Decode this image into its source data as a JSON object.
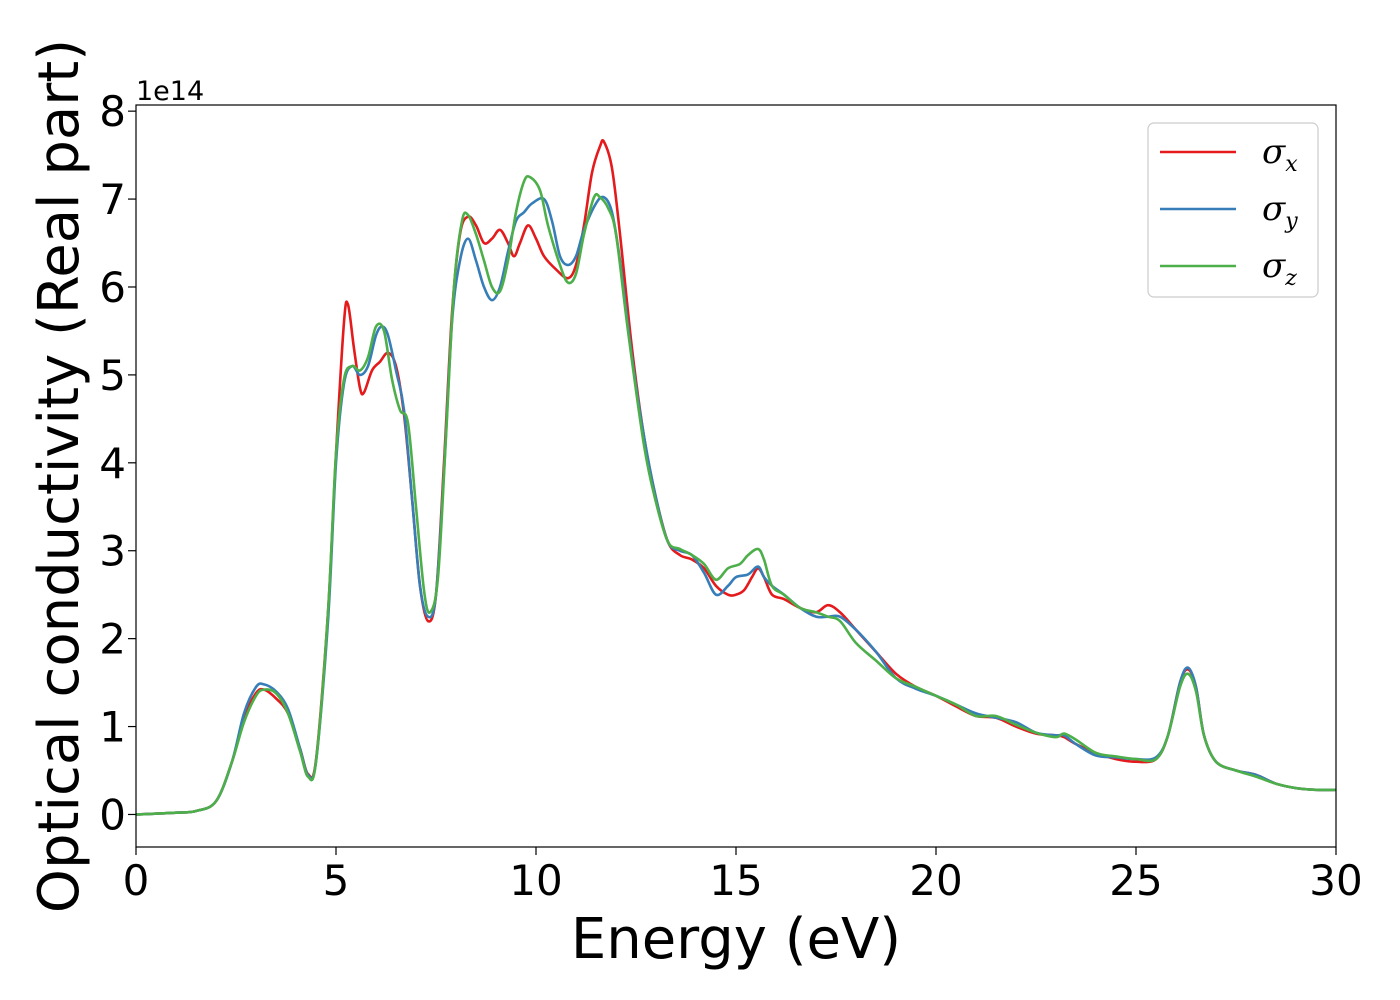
{
  "chart_data": {
    "type": "line",
    "title": "",
    "xlabel": "Energy (eV)",
    "ylabel": "Optical conductivity (Real part)",
    "y_offset_label": "1e14",
    "xlim": [
      0,
      30
    ],
    "ylim": [
      -0.37,
      8.07
    ],
    "x_ticks": [
      "0",
      "5",
      "10",
      "15",
      "20",
      "25",
      "30"
    ],
    "y_ticks": [
      "0",
      "1",
      "2",
      "3",
      "4",
      "5",
      "6",
      "7",
      "8"
    ],
    "grid": false,
    "legend_position": "top-right",
    "series": [
      {
        "name": "σx",
        "symbol": "σ",
        "subscript": "x",
        "color": "#e41a1c",
        "points": [
          [
            0,
            0
          ],
          [
            1,
            0.02
          ],
          [
            1.5,
            0.04
          ],
          [
            2,
            0.15
          ],
          [
            2.4,
            0.6
          ],
          [
            2.7,
            1.1
          ],
          [
            3,
            1.38
          ],
          [
            3.2,
            1.42
          ],
          [
            3.5,
            1.32
          ],
          [
            3.8,
            1.15
          ],
          [
            4.1,
            0.75
          ],
          [
            4.3,
            0.46
          ],
          [
            4.5,
            0.62
          ],
          [
            4.8,
            2.3
          ],
          [
            5,
            4.1
          ],
          [
            5.2,
            5.6
          ],
          [
            5.3,
            5.8
          ],
          [
            5.45,
            5.3
          ],
          [
            5.6,
            4.85
          ],
          [
            5.7,
            4.8
          ],
          [
            5.9,
            5.05
          ],
          [
            6.1,
            5.15
          ],
          [
            6.3,
            5.25
          ],
          [
            6.5,
            5.1
          ],
          [
            6.7,
            4.55
          ],
          [
            6.9,
            3.6
          ],
          [
            7.1,
            2.6
          ],
          [
            7.3,
            2.2
          ],
          [
            7.5,
            2.5
          ],
          [
            7.7,
            4
          ],
          [
            7.9,
            5.7
          ],
          [
            8.1,
            6.6
          ],
          [
            8.3,
            6.8
          ],
          [
            8.5,
            6.7
          ],
          [
            8.7,
            6.5
          ],
          [
            8.9,
            6.55
          ],
          [
            9.1,
            6.65
          ],
          [
            9.3,
            6.5
          ],
          [
            9.45,
            6.35
          ],
          [
            9.6,
            6.5
          ],
          [
            9.8,
            6.7
          ],
          [
            10,
            6.55
          ],
          [
            10.2,
            6.35
          ],
          [
            10.5,
            6.2
          ],
          [
            10.8,
            6.1
          ],
          [
            11,
            6.25
          ],
          [
            11.2,
            6.7
          ],
          [
            11.4,
            7.3
          ],
          [
            11.6,
            7.6
          ],
          [
            11.7,
            7.65
          ],
          [
            11.9,
            7.35
          ],
          [
            12.1,
            6.6
          ],
          [
            12.4,
            5.3
          ],
          [
            12.7,
            4.3
          ],
          [
            13,
            3.6
          ],
          [
            13.3,
            3.1
          ],
          [
            13.6,
            2.95
          ],
          [
            13.9,
            2.9
          ],
          [
            14.2,
            2.8
          ],
          [
            14.5,
            2.6
          ],
          [
            14.8,
            2.5
          ],
          [
            15,
            2.5
          ],
          [
            15.2,
            2.55
          ],
          [
            15.4,
            2.7
          ],
          [
            15.55,
            2.8
          ],
          [
            15.7,
            2.7
          ],
          [
            15.9,
            2.5
          ],
          [
            16.2,
            2.45
          ],
          [
            16.6,
            2.35
          ],
          [
            17,
            2.3
          ],
          [
            17.3,
            2.38
          ],
          [
            17.6,
            2.3
          ],
          [
            18,
            2.1
          ],
          [
            18.5,
            1.85
          ],
          [
            19,
            1.6
          ],
          [
            19.5,
            1.45
          ],
          [
            20,
            1.35
          ],
          [
            20.5,
            1.23
          ],
          [
            21,
            1.12
          ],
          [
            21.5,
            1.1
          ],
          [
            22,
            1
          ],
          [
            22.5,
            0.92
          ],
          [
            23,
            0.9
          ],
          [
            23.2,
            0.88
          ],
          [
            23.5,
            0.8
          ],
          [
            24,
            0.7
          ],
          [
            24.5,
            0.63
          ],
          [
            25,
            0.6
          ],
          [
            25.5,
            0.63
          ],
          [
            25.8,
            0.9
          ],
          [
            26.1,
            1.5
          ],
          [
            26.3,
            1.65
          ],
          [
            26.5,
            1.45
          ],
          [
            26.7,
            0.9
          ],
          [
            27,
            0.6
          ],
          [
            27.5,
            0.5
          ],
          [
            28,
            0.45
          ],
          [
            28.5,
            0.35
          ],
          [
            29,
            0.3
          ],
          [
            29.5,
            0.28
          ],
          [
            30,
            0.28
          ]
        ]
      },
      {
        "name": "σy",
        "symbol": "σ",
        "subscript": "y",
        "color": "#377eb8",
        "points": [
          [
            0,
            0
          ],
          [
            1,
            0.02
          ],
          [
            1.5,
            0.04
          ],
          [
            2,
            0.15
          ],
          [
            2.4,
            0.6
          ],
          [
            2.7,
            1.15
          ],
          [
            3,
            1.45
          ],
          [
            3.2,
            1.48
          ],
          [
            3.5,
            1.4
          ],
          [
            3.8,
            1.2
          ],
          [
            4.1,
            0.75
          ],
          [
            4.3,
            0.45
          ],
          [
            4.5,
            0.6
          ],
          [
            4.8,
            2.2
          ],
          [
            5,
            4
          ],
          [
            5.2,
            4.9
          ],
          [
            5.4,
            5.1
          ],
          [
            5.6,
            5
          ],
          [
            5.8,
            5.1
          ],
          [
            6,
            5.45
          ],
          [
            6.15,
            5.55
          ],
          [
            6.3,
            5.45
          ],
          [
            6.5,
            5.05
          ],
          [
            6.7,
            4.6
          ],
          [
            6.9,
            3.6
          ],
          [
            7.1,
            2.6
          ],
          [
            7.3,
            2.25
          ],
          [
            7.5,
            2.5
          ],
          [
            7.7,
            3.9
          ],
          [
            7.9,
            5.6
          ],
          [
            8.1,
            6.3
          ],
          [
            8.3,
            6.55
          ],
          [
            8.5,
            6.3
          ],
          [
            8.7,
            6
          ],
          [
            8.9,
            5.85
          ],
          [
            9.1,
            6
          ],
          [
            9.3,
            6.4
          ],
          [
            9.5,
            6.75
          ],
          [
            9.7,
            6.85
          ],
          [
            9.9,
            6.95
          ],
          [
            10.2,
            7
          ],
          [
            10.4,
            6.75
          ],
          [
            10.6,
            6.35
          ],
          [
            10.8,
            6.25
          ],
          [
            11,
            6.35
          ],
          [
            11.2,
            6.65
          ],
          [
            11.5,
            6.95
          ],
          [
            11.7,
            7.02
          ],
          [
            11.9,
            6.85
          ],
          [
            12.1,
            6.3
          ],
          [
            12.4,
            5.2
          ],
          [
            12.7,
            4.3
          ],
          [
            13,
            3.6
          ],
          [
            13.3,
            3.1
          ],
          [
            13.6,
            3
          ],
          [
            13.9,
            2.95
          ],
          [
            14.2,
            2.75
          ],
          [
            14.5,
            2.5
          ],
          [
            14.8,
            2.6
          ],
          [
            15,
            2.7
          ],
          [
            15.3,
            2.73
          ],
          [
            15.55,
            2.82
          ],
          [
            15.7,
            2.7
          ],
          [
            15.9,
            2.6
          ],
          [
            16.2,
            2.5
          ],
          [
            16.6,
            2.35
          ],
          [
            17,
            2.25
          ],
          [
            17.3,
            2.25
          ],
          [
            17.6,
            2.25
          ],
          [
            18,
            2.1
          ],
          [
            18.5,
            1.85
          ],
          [
            19,
            1.55
          ],
          [
            19.5,
            1.43
          ],
          [
            20,
            1.35
          ],
          [
            20.5,
            1.25
          ],
          [
            21,
            1.15
          ],
          [
            21.5,
            1.1
          ],
          [
            22,
            1.05
          ],
          [
            22.5,
            0.93
          ],
          [
            23,
            0.9
          ],
          [
            23.2,
            0.9
          ],
          [
            23.5,
            0.8
          ],
          [
            24,
            0.67
          ],
          [
            24.5,
            0.65
          ],
          [
            25,
            0.63
          ],
          [
            25.5,
            0.65
          ],
          [
            25.8,
            0.9
          ],
          [
            26.1,
            1.5
          ],
          [
            26.3,
            1.67
          ],
          [
            26.5,
            1.45
          ],
          [
            26.7,
            0.9
          ],
          [
            27,
            0.6
          ],
          [
            27.5,
            0.5
          ],
          [
            28,
            0.45
          ],
          [
            28.5,
            0.35
          ],
          [
            29,
            0.3
          ],
          [
            29.5,
            0.28
          ],
          [
            30,
            0.28
          ]
        ]
      },
      {
        "name": "σz",
        "symbol": "σ",
        "subscript": "z",
        "color": "#4daf4a",
        "points": [
          [
            0,
            0
          ],
          [
            1,
            0.02
          ],
          [
            1.5,
            0.04
          ],
          [
            2,
            0.15
          ],
          [
            2.4,
            0.6
          ],
          [
            2.7,
            1.05
          ],
          [
            3,
            1.35
          ],
          [
            3.2,
            1.42
          ],
          [
            3.5,
            1.38
          ],
          [
            3.8,
            1.15
          ],
          [
            4.1,
            0.72
          ],
          [
            4.3,
            0.43
          ],
          [
            4.5,
            0.6
          ],
          [
            4.8,
            2.3
          ],
          [
            5,
            4.1
          ],
          [
            5.2,
            4.95
          ],
          [
            5.4,
            5.1
          ],
          [
            5.6,
            5.05
          ],
          [
            5.8,
            5.2
          ],
          [
            6,
            5.55
          ],
          [
            6.2,
            5.5
          ],
          [
            6.4,
            4.95
          ],
          [
            6.6,
            4.6
          ],
          [
            6.8,
            4.45
          ],
          [
            7,
            3.5
          ],
          [
            7.2,
            2.55
          ],
          [
            7.35,
            2.3
          ],
          [
            7.55,
            2.7
          ],
          [
            7.75,
            4.3
          ],
          [
            7.95,
            6
          ],
          [
            8.15,
            6.75
          ],
          [
            8.3,
            6.82
          ],
          [
            8.5,
            6.6
          ],
          [
            8.7,
            6.3
          ],
          [
            8.9,
            6
          ],
          [
            9.1,
            5.95
          ],
          [
            9.3,
            6.3
          ],
          [
            9.5,
            6.85
          ],
          [
            9.7,
            7.2
          ],
          [
            9.85,
            7.25
          ],
          [
            10.1,
            7.1
          ],
          [
            10.3,
            6.7
          ],
          [
            10.6,
            6.25
          ],
          [
            10.8,
            6.05
          ],
          [
            11,
            6.15
          ],
          [
            11.2,
            6.6
          ],
          [
            11.45,
            7.02
          ],
          [
            11.6,
            7.02
          ],
          [
            11.8,
            6.9
          ],
          [
            12,
            6.6
          ],
          [
            12.3,
            5.5
          ],
          [
            12.7,
            4.2
          ],
          [
            13,
            3.55
          ],
          [
            13.3,
            3.1
          ],
          [
            13.6,
            3.02
          ],
          [
            13.9,
            2.95
          ],
          [
            14.2,
            2.85
          ],
          [
            14.5,
            2.67
          ],
          [
            14.8,
            2.8
          ],
          [
            15.1,
            2.85
          ],
          [
            15.3,
            2.95
          ],
          [
            15.55,
            3.02
          ],
          [
            15.7,
            2.9
          ],
          [
            15.9,
            2.6
          ],
          [
            16.2,
            2.5
          ],
          [
            16.6,
            2.35
          ],
          [
            17,
            2.3
          ],
          [
            17.3,
            2.25
          ],
          [
            17.6,
            2.2
          ],
          [
            18,
            1.95
          ],
          [
            18.5,
            1.75
          ],
          [
            19,
            1.55
          ],
          [
            19.5,
            1.45
          ],
          [
            20,
            1.35
          ],
          [
            20.5,
            1.25
          ],
          [
            21,
            1.12
          ],
          [
            21.5,
            1.12
          ],
          [
            22,
            1.02
          ],
          [
            22.5,
            0.93
          ],
          [
            23,
            0.88
          ],
          [
            23.2,
            0.92
          ],
          [
            23.5,
            0.85
          ],
          [
            24,
            0.7
          ],
          [
            24.5,
            0.66
          ],
          [
            25,
            0.63
          ],
          [
            25.5,
            0.63
          ],
          [
            25.8,
            0.9
          ],
          [
            26.1,
            1.45
          ],
          [
            26.3,
            1.6
          ],
          [
            26.5,
            1.4
          ],
          [
            26.7,
            0.9
          ],
          [
            27,
            0.6
          ],
          [
            27.5,
            0.5
          ],
          [
            28,
            0.43
          ],
          [
            28.5,
            0.35
          ],
          [
            29,
            0.3
          ],
          [
            29.5,
            0.28
          ],
          [
            30,
            0.28
          ]
        ]
      }
    ]
  }
}
